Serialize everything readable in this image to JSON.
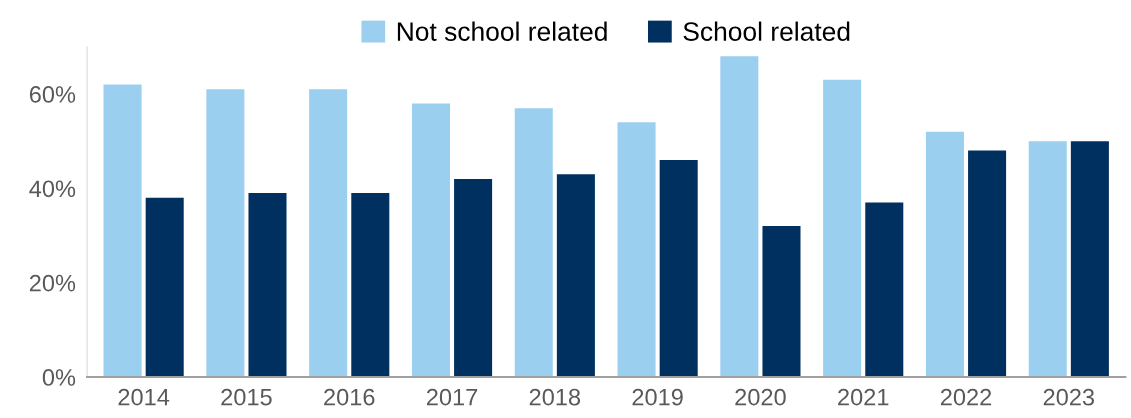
{
  "chart_data": {
    "type": "bar",
    "categories": [
      "2014",
      "2015",
      "2016",
      "2017",
      "2018",
      "2019",
      "2020",
      "2021",
      "2022",
      "2023"
    ],
    "series": [
      {
        "name": "Not school related",
        "color": "#9acff0",
        "values": [
          62,
          61,
          61,
          58,
          57,
          54,
          68,
          63,
          52,
          50
        ]
      },
      {
        "name": "School related",
        "color": "#00305f",
        "values": [
          38,
          39,
          39,
          42,
          43,
          46,
          32,
          37,
          48,
          50
        ]
      }
    ],
    "ylim": [
      0,
      70
    ],
    "yticks": [
      {
        "value": 0,
        "label": "0%"
      },
      {
        "value": 20,
        "label": "20%"
      },
      {
        "value": 40,
        "label": "40%"
      },
      {
        "value": 60,
        "label": "60%"
      }
    ],
    "grid": false,
    "legend": "top"
  }
}
